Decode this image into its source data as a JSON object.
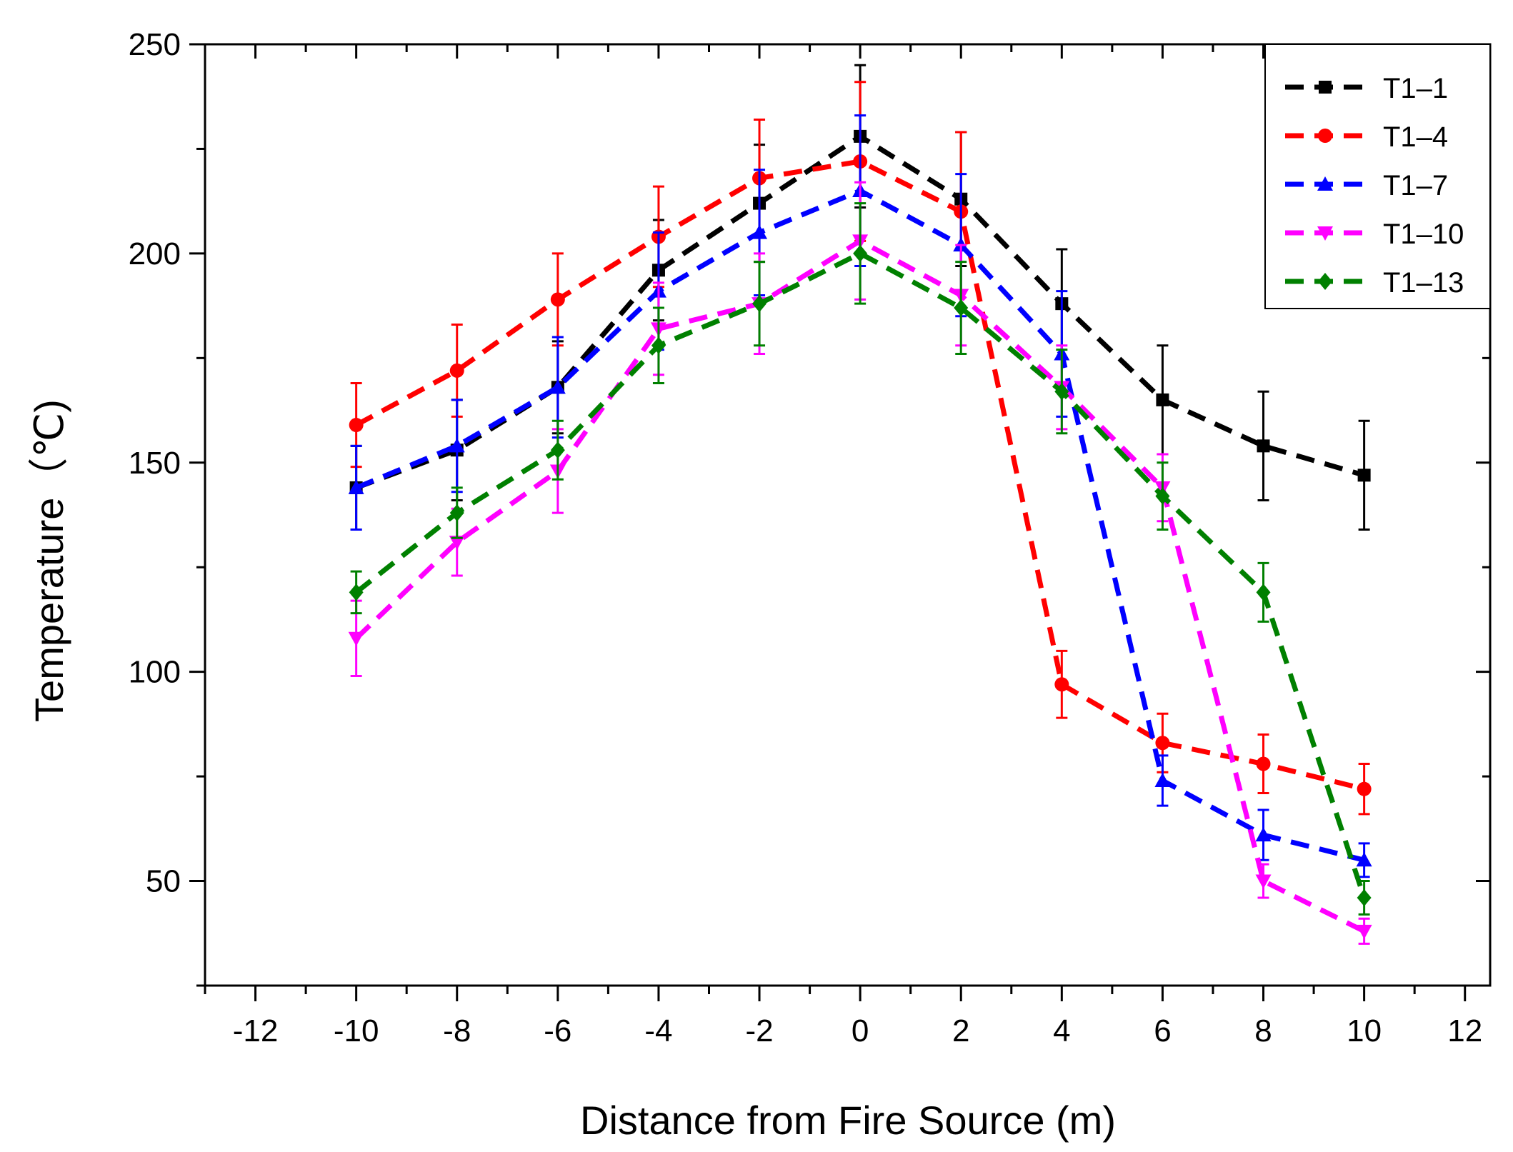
{
  "chart_data": {
    "type": "line",
    "title": "",
    "xlabel": "Distance from Fire Source (m)",
    "ylabel": "Temperature（℃)",
    "xlim": [
      -13,
      12.5
    ],
    "ylim": [
      25,
      250
    ],
    "x_ticks": [
      -12,
      -10,
      -8,
      -6,
      -4,
      -2,
      0,
      2,
      4,
      6,
      8,
      10,
      12
    ],
    "y_ticks": [
      50,
      100,
      150,
      200,
      250
    ],
    "x_tick_labels": [
      "-12",
      "-10",
      "-8",
      "-6",
      "-4",
      "-2",
      "0",
      "2",
      "4",
      "6",
      "8",
      "10",
      "12"
    ],
    "y_tick_labels": [
      "50",
      "100",
      "150",
      "200",
      "250"
    ],
    "legend_position": "top-right",
    "x": [
      -10,
      -8,
      -6,
      -4,
      -2,
      0,
      2,
      4,
      6,
      8,
      10
    ],
    "series": [
      {
        "name": "T1–1",
        "color": "#000000",
        "marker": "square",
        "values": [
          144,
          153,
          168,
          196,
          212,
          228,
          213,
          188,
          165,
          154,
          147
        ],
        "errors": [
          10,
          12,
          11,
          12,
          14,
          17,
          16,
          13,
          13,
          13,
          13
        ]
      },
      {
        "name": "T1–4",
        "color": "#ff0000",
        "marker": "circle",
        "values": [
          159,
          172,
          189,
          204,
          218,
          222,
          210,
          97,
          83,
          78,
          72
        ],
        "errors": [
          10,
          11,
          11,
          12,
          14,
          19,
          19,
          8,
          7,
          7,
          6
        ]
      },
      {
        "name": "T1–7",
        "color": "#0000ff",
        "marker": "triangle-up",
        "values": [
          144,
          154,
          168,
          191,
          205,
          215,
          202,
          176,
          74,
          61,
          55
        ],
        "errors": [
          10,
          11,
          12,
          14,
          15,
          18,
          17,
          15,
          6,
          6,
          4
        ]
      },
      {
        "name": "T1–10",
        "color": "#ff00ff",
        "marker": "triangle-down",
        "values": [
          108,
          131,
          148,
          182,
          188,
          203,
          190,
          168,
          144,
          50,
          38
        ],
        "errors": [
          9,
          8,
          10,
          11,
          12,
          14,
          12,
          10,
          8,
          4,
          3
        ]
      },
      {
        "name": "T1–13",
        "color": "#008000",
        "marker": "diamond",
        "values": [
          119,
          138,
          153,
          178,
          188,
          200,
          187,
          167,
          142,
          119,
          46
        ],
        "errors": [
          5,
          6,
          7,
          9,
          10,
          12,
          11,
          10,
          8,
          7,
          4
        ]
      }
    ]
  }
}
